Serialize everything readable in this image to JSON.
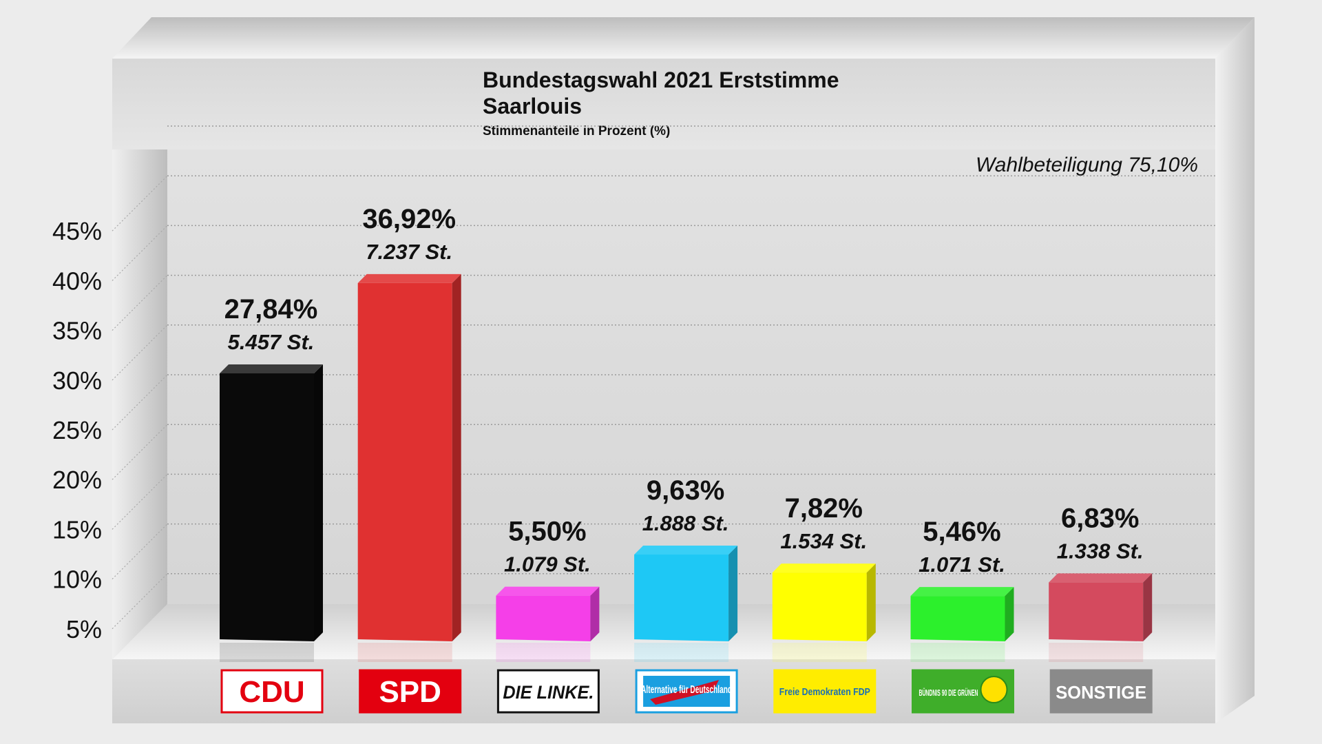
{
  "chart_data": {
    "type": "bar",
    "title": "Bundestagswahl 2021 Erststimme",
    "subtitle": "Saarlouis",
    "caption": "Stimmenanteile in Prozent (%)",
    "annotation": "Wahlbeteiligung 75,10%",
    "categories": [
      "CDU",
      "SPD",
      "DIE LINKE.",
      "Alternative für Deutschland",
      "Freie Demokraten FDP",
      "BÜNDNIS 90 DIE GRÜNEN",
      "SONSTIGE"
    ],
    "values": [
      27.84,
      36.92,
      5.5,
      9.63,
      7.82,
      5.46,
      6.83
    ],
    "value_labels": [
      "27,84%",
      "36,92%",
      "5,50%",
      "9,63%",
      "7,82%",
      "5,46%",
      "6,83%"
    ],
    "vote_labels": [
      "5.457 St.",
      "7.237 St.",
      "1.079 St.",
      "1.888 St.",
      "1.534 St.",
      "1.071 St.",
      "1.338 St."
    ],
    "colors": [
      "#0a0a0a",
      "#e03131",
      "#f53fe8",
      "#1ec8f5",
      "#ffff00",
      "#2cf02c",
      "#d44a5e"
    ],
    "ylim": [
      0,
      45
    ],
    "yticks": [
      5,
      10,
      15,
      20,
      25,
      30,
      35,
      40,
      45
    ],
    "ytick_labels": [
      "5%",
      "10%",
      "15%",
      "20%",
      "25%",
      "30%",
      "35%",
      "40%",
      "45%"
    ],
    "grid": true,
    "legend": "none"
  },
  "logos": [
    {
      "text": "CDU",
      "bg": "#ffffff",
      "fg": "#e3000f",
      "border": "#e3000f"
    },
    {
      "text": "SPD",
      "bg": "#e3000f",
      "fg": "#ffffff",
      "border": "#e3000f"
    },
    {
      "text": "DIE LINKE.",
      "bg": "#ffffff",
      "fg": "#111111",
      "border": "#111111"
    },
    {
      "text": "Alternative für Deutschland",
      "bg": "#ffffff",
      "fg": "#ffffff",
      "border": "#1a9fe0"
    },
    {
      "text": "Freie Demokraten FDP",
      "bg": "#ffed00",
      "fg": "#1a6fb4",
      "border": "#ffed00"
    },
    {
      "text": "BÜNDNIS 90 DIE GRÜNEN",
      "bg": "#3fae2a",
      "fg": "#ffffff",
      "border": "#3fae2a"
    },
    {
      "text": "SONSTIGE",
      "bg": "#8a8a8a",
      "fg": "#ffffff",
      "border": "#8a8a8a"
    }
  ]
}
